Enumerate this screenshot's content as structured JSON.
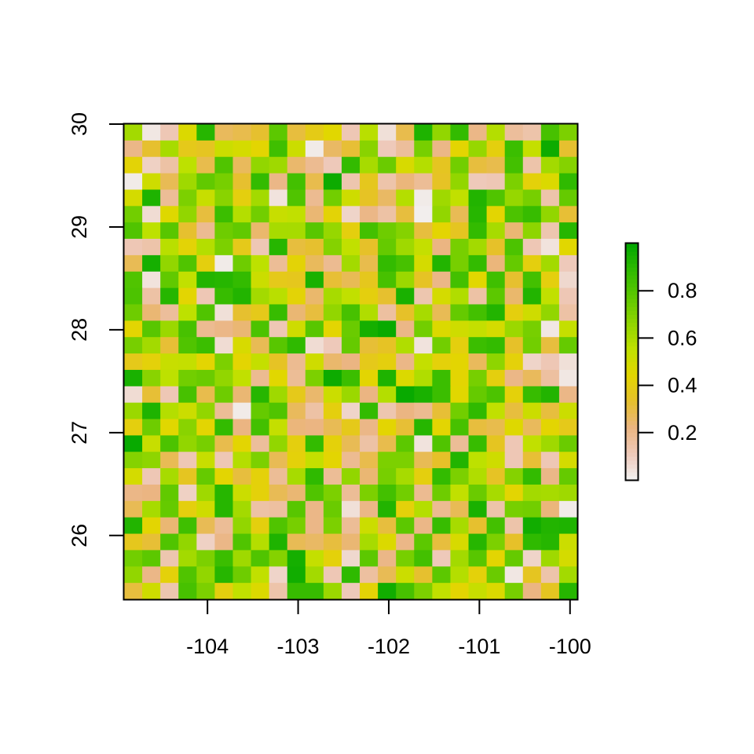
{
  "chart_data": {
    "type": "heatmap",
    "title": "",
    "xlabel": "",
    "ylabel": "",
    "xlim": [
      -104.92,
      -99.92
    ],
    "ylim": [
      25.38,
      30.0
    ],
    "ncols": 25,
    "nrows": 29,
    "x_ticks": [
      -104,
      -103,
      -102,
      -101,
      -100
    ],
    "x_tick_labels": [
      "-104",
      "-103",
      "-102",
      "-101",
      "-100"
    ],
    "y_ticks": [
      26,
      27,
      28,
      29,
      30
    ],
    "y_tick_labels": [
      "26",
      "27",
      "28",
      "29",
      "30"
    ],
    "legend": {
      "position": "right",
      "range": [
        0.0,
        1.0
      ],
      "ticks": [
        0.2,
        0.4,
        0.6,
        0.8
      ],
      "tick_labels": [
        "0.2",
        "0.4",
        "0.6",
        "0.8"
      ]
    },
    "colors": [
      "#F2F2F2",
      "#EEC9B9",
      "#EBB581",
      "#E6C02C",
      "#E3D600",
      "#BFE100",
      "#8FD500",
      "#5DC800",
      "#2FBA00",
      "#00A600"
    ],
    "values": [
      [
        0.62,
        0.03,
        0.12,
        0.47,
        0.91,
        0.27,
        0.29,
        0.33,
        0.78,
        0.31,
        0.39,
        0.45,
        0.12,
        0.57,
        0.05,
        0.29,
        0.93,
        0.66,
        0.88,
        0.21,
        0.58,
        0.17,
        0.14,
        0.83,
        0.71
      ],
      [
        0.21,
        0.33,
        0.61,
        0.38,
        0.36,
        0.52,
        0.49,
        0.44,
        0.85,
        0.52,
        0.02,
        0.26,
        0.32,
        0.68,
        0.11,
        0.17,
        0.72,
        0.21,
        0.44,
        0.65,
        0.41,
        0.86,
        0.54,
        0.97,
        0.33
      ],
      [
        0.43,
        0.09,
        0.15,
        0.56,
        0.29,
        0.81,
        0.27,
        0.66,
        0.63,
        0.25,
        0.19,
        0.11,
        0.88,
        0.61,
        0.75,
        0.48,
        0.58,
        0.36,
        0.73,
        0.31,
        0.29,
        0.84,
        0.14,
        0.62,
        0.69
      ],
      [
        0.02,
        0.51,
        0.28,
        0.63,
        0.77,
        0.72,
        0.33,
        0.88,
        0.21,
        0.84,
        0.29,
        0.97,
        0.13,
        0.37,
        0.14,
        0.23,
        0.18,
        0.35,
        0.66,
        0.11,
        0.12,
        0.71,
        0.42,
        0.47,
        0.89
      ],
      [
        0.49,
        0.93,
        0.18,
        0.71,
        0.53,
        0.68,
        0.41,
        0.62,
        0.04,
        0.81,
        0.19,
        0.73,
        0.51,
        0.35,
        0.26,
        0.58,
        0.02,
        0.63,
        0.55,
        0.92,
        0.81,
        0.65,
        0.72,
        0.14,
        0.76
      ],
      [
        0.73,
        0.06,
        0.46,
        0.66,
        0.31,
        0.86,
        0.58,
        0.73,
        0.53,
        0.55,
        0.24,
        0.43,
        0.08,
        0.21,
        0.15,
        0.31,
        0.01,
        0.66,
        0.28,
        0.91,
        0.44,
        0.82,
        0.87,
        0.66,
        0.32
      ],
      [
        0.81,
        0.56,
        0.79,
        0.33,
        0.19,
        0.74,
        0.77,
        0.25,
        0.61,
        0.61,
        0.79,
        0.65,
        0.41,
        0.84,
        0.74,
        0.69,
        0.31,
        0.44,
        0.36,
        0.88,
        0.61,
        0.24,
        0.67,
        0.13,
        0.91
      ],
      [
        0.12,
        0.14,
        0.57,
        0.43,
        0.58,
        0.71,
        0.38,
        0.12,
        0.91,
        0.31,
        0.33,
        0.69,
        0.55,
        0.34,
        0.76,
        0.63,
        0.54,
        0.22,
        0.72,
        0.62,
        0.34,
        0.82,
        0.12,
        0.04,
        0.45
      ],
      [
        0.28,
        0.95,
        0.66,
        0.81,
        0.41,
        0.02,
        0.74,
        0.56,
        0.18,
        0.43,
        0.27,
        0.19,
        0.62,
        0.29,
        0.88,
        0.83,
        0.49,
        0.92,
        0.72,
        0.88,
        0.23,
        0.76,
        0.41,
        0.62,
        0.11
      ],
      [
        0.81,
        0.04,
        0.77,
        0.55,
        0.92,
        0.91,
        0.88,
        0.52,
        0.38,
        0.37,
        0.94,
        0.32,
        0.28,
        0.37,
        0.83,
        0.64,
        0.35,
        0.21,
        0.84,
        0.45,
        0.85,
        0.33,
        0.84,
        0.41,
        0.07
      ],
      [
        0.82,
        0.15,
        0.91,
        0.44,
        0.12,
        0.87,
        0.92,
        0.62,
        0.57,
        0.43,
        0.25,
        0.61,
        0.55,
        0.41,
        0.33,
        0.94,
        0.13,
        0.49,
        0.59,
        0.15,
        0.78,
        0.25,
        0.92,
        0.55,
        0.12
      ],
      [
        0.74,
        0.24,
        0.17,
        0.56,
        0.81,
        0.05,
        0.33,
        0.38,
        0.87,
        0.24,
        0.31,
        0.66,
        0.83,
        0.59,
        0.16,
        0.34,
        0.61,
        0.28,
        0.76,
        0.84,
        0.92,
        0.41,
        0.51,
        0.66,
        0.15
      ],
      [
        0.44,
        0.79,
        0.64,
        0.83,
        0.19,
        0.21,
        0.24,
        0.82,
        0.12,
        0.51,
        0.79,
        0.44,
        0.75,
        0.95,
        0.98,
        0.21,
        0.73,
        0.47,
        0.51,
        0.54,
        0.49,
        0.64,
        0.72,
        0.03,
        0.54
      ],
      [
        0.72,
        0.62,
        0.32,
        0.81,
        0.86,
        0.06,
        0.48,
        0.28,
        0.79,
        0.89,
        0.06,
        0.11,
        0.76,
        0.32,
        0.35,
        0.59,
        0.04,
        0.73,
        0.41,
        0.86,
        0.88,
        0.34,
        0.73,
        0.31,
        0.76
      ],
      [
        0.38,
        0.42,
        0.53,
        0.54,
        0.44,
        0.71,
        0.44,
        0.54,
        0.35,
        0.19,
        0.51,
        0.25,
        0.22,
        0.38,
        0.41,
        0.21,
        0.54,
        0.42,
        0.44,
        0.27,
        0.67,
        0.42,
        0.08,
        0.12,
        0.05
      ],
      [
        0.94,
        0.68,
        0.56,
        0.73,
        0.75,
        0.66,
        0.55,
        0.19,
        0.45,
        0.18,
        0.71,
        0.97,
        0.86,
        0.44,
        0.93,
        0.47,
        0.59,
        0.86,
        0.44,
        0.72,
        0.41,
        0.21,
        0.27,
        0.16,
        0.03
      ],
      [
        0.06,
        0.32,
        0.12,
        0.83,
        0.29,
        0.74,
        0.24,
        0.91,
        0.63,
        0.38,
        0.25,
        0.52,
        0.64,
        0.22,
        0.58,
        0.98,
        0.94,
        0.86,
        0.45,
        0.76,
        0.82,
        0.42,
        0.87,
        0.92,
        0.21
      ],
      [
        0.64,
        0.93,
        0.58,
        0.52,
        0.66,
        0.18,
        0.02,
        0.76,
        0.81,
        0.27,
        0.15,
        0.41,
        0.08,
        0.88,
        0.13,
        0.22,
        0.19,
        0.32,
        0.73,
        0.89,
        0.55,
        0.31,
        0.52,
        0.31,
        0.52
      ],
      [
        0.41,
        0.74,
        0.45,
        0.68,
        0.44,
        0.88,
        0.22,
        0.84,
        0.54,
        0.23,
        0.22,
        0.28,
        0.38,
        0.21,
        0.44,
        0.32,
        0.91,
        0.44,
        0.83,
        0.31,
        0.29,
        0.46,
        0.27,
        0.44,
        0.38
      ],
      [
        0.98,
        0.53,
        0.82,
        0.66,
        0.72,
        0.29,
        0.44,
        0.17,
        0.66,
        0.41,
        0.88,
        0.42,
        0.28,
        0.15,
        0.29,
        0.78,
        0.04,
        0.81,
        0.18,
        0.87,
        0.36,
        0.12,
        0.55,
        0.63,
        0.75
      ],
      [
        0.69,
        0.67,
        0.28,
        0.12,
        0.53,
        0.12,
        0.58,
        0.71,
        0.28,
        0.42,
        0.54,
        0.44,
        0.19,
        0.29,
        0.71,
        0.71,
        0.28,
        0.34,
        0.92,
        0.56,
        0.51,
        0.12,
        0.32,
        0.12,
        0.49
      ],
      [
        0.49,
        0.12,
        0.61,
        0.36,
        0.76,
        0.44,
        0.31,
        0.42,
        0.18,
        0.61,
        0.89,
        0.18,
        0.66,
        0.24,
        0.72,
        0.61,
        0.41,
        0.88,
        0.71,
        0.59,
        0.35,
        0.69,
        0.88,
        0.21,
        0.76
      ],
      [
        0.21,
        0.22,
        0.77,
        0.09,
        0.63,
        0.91,
        0.52,
        0.42,
        0.28,
        0.24,
        0.81,
        0.71,
        0.18,
        0.71,
        0.84,
        0.73,
        0.19,
        0.74,
        0.55,
        0.75,
        0.61,
        0.44,
        0.62,
        0.61,
        0.63
      ],
      [
        0.28,
        0.61,
        0.76,
        0.41,
        0.51,
        0.91,
        0.62,
        0.15,
        0.16,
        0.79,
        0.21,
        0.75,
        0.05,
        0.21,
        0.92,
        0.42,
        0.58,
        0.19,
        0.28,
        0.94,
        0.14,
        0.72,
        0.73,
        0.23,
        0.02
      ],
      [
        0.92,
        0.44,
        0.24,
        0.85,
        0.28,
        0.18,
        0.66,
        0.41,
        0.81,
        0.72,
        0.21,
        0.71,
        0.18,
        0.52,
        0.31,
        0.78,
        0.21,
        0.87,
        0.61,
        0.33,
        0.84,
        0.14,
        0.96,
        0.92,
        0.93
      ],
      [
        0.37,
        0.32,
        0.81,
        0.66,
        0.09,
        0.21,
        0.81,
        0.58,
        0.93,
        0.28,
        0.26,
        0.31,
        0.24,
        0.61,
        0.47,
        0.21,
        0.78,
        0.31,
        0.48,
        0.91,
        0.71,
        0.34,
        0.89,
        0.91,
        0.52
      ],
      [
        0.73,
        0.78,
        0.13,
        0.62,
        0.71,
        0.86,
        0.63,
        0.81,
        0.69,
        0.95,
        0.54,
        0.42,
        0.07,
        0.78,
        0.21,
        0.72,
        0.84,
        0.11,
        0.62,
        0.79,
        0.44,
        0.76,
        0.08,
        0.63,
        0.49
      ],
      [
        0.66,
        0.21,
        0.42,
        0.81,
        0.66,
        0.91,
        0.74,
        0.55,
        0.08,
        0.96,
        0.62,
        0.12,
        0.89,
        0.16,
        0.28,
        0.52,
        0.33,
        0.78,
        0.58,
        0.42,
        0.75,
        0.03,
        0.36,
        0.14,
        0.62
      ],
      [
        0.31,
        0.51,
        0.13,
        0.83,
        0.71,
        0.41,
        0.55,
        0.47,
        0.14,
        0.87,
        0.87,
        0.64,
        0.11,
        0.43,
        0.96,
        0.83,
        0.71,
        0.55,
        0.44,
        0.53,
        0.47,
        0.72,
        0.22,
        0.36,
        0.91
      ]
    ]
  }
}
